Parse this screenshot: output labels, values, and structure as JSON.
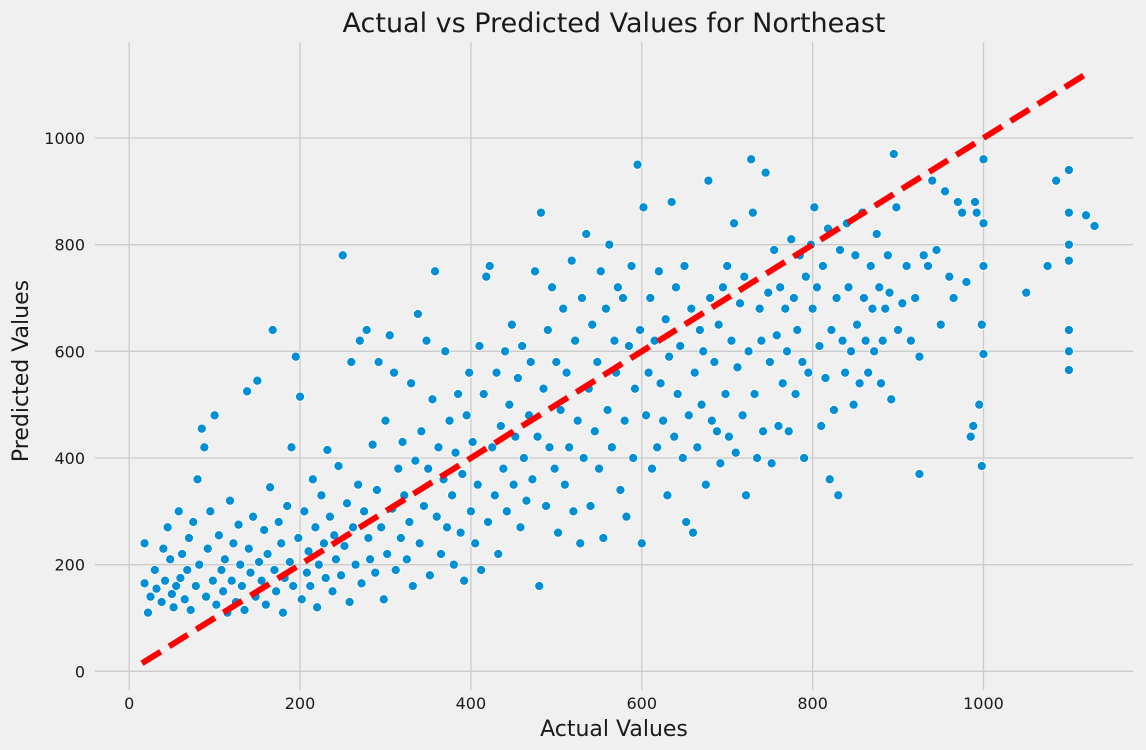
{
  "chart_data": {
    "type": "scatter",
    "title": "Actual vs Predicted Values for Northeast",
    "xlabel": "Actual Values",
    "ylabel": "Predicted Values",
    "xlim": [
      -40,
      1175
    ],
    "ylim": [
      -35,
      1180
    ],
    "xticks": [
      0,
      200,
      400,
      600,
      800,
      1000
    ],
    "yticks": [
      0,
      200,
      400,
      600,
      800,
      1000
    ],
    "grid": true,
    "point_color": "#008fd5",
    "reference_line": {
      "style": "dashed",
      "color": "#ff0000",
      "from": [
        15,
        15
      ],
      "to": [
        1125,
        1125
      ]
    },
    "points": [
      [
        18,
        240
      ],
      [
        18,
        165
      ],
      [
        22,
        110
      ],
      [
        25,
        140
      ],
      [
        30,
        190
      ],
      [
        32,
        155
      ],
      [
        38,
        130
      ],
      [
        40,
        230
      ],
      [
        42,
        170
      ],
      [
        45,
        270
      ],
      [
        48,
        210
      ],
      [
        50,
        145
      ],
      [
        52,
        120
      ],
      [
        55,
        160
      ],
      [
        58,
        300
      ],
      [
        60,
        175
      ],
      [
        62,
        220
      ],
      [
        65,
        135
      ],
      [
        68,
        190
      ],
      [
        70,
        250
      ],
      [
        72,
        115
      ],
      [
        75,
        280
      ],
      [
        78,
        160
      ],
      [
        80,
        360
      ],
      [
        82,
        200
      ],
      [
        85,
        455
      ],
      [
        88,
        420
      ],
      [
        90,
        140
      ],
      [
        92,
        230
      ],
      [
        95,
        300
      ],
      [
        98,
        170
      ],
      [
        100,
        480
      ],
      [
        102,
        125
      ],
      [
        105,
        255
      ],
      [
        108,
        190
      ],
      [
        110,
        150
      ],
      [
        112,
        210
      ],
      [
        115,
        110
      ],
      [
        118,
        320
      ],
      [
        120,
        170
      ],
      [
        122,
        240
      ],
      [
        125,
        130
      ],
      [
        128,
        275
      ],
      [
        130,
        200
      ],
      [
        132,
        160
      ],
      [
        135,
        115
      ],
      [
        138,
        525
      ],
      [
        140,
        230
      ],
      [
        142,
        185
      ],
      [
        145,
        290
      ],
      [
        148,
        140
      ],
      [
        150,
        545
      ],
      [
        152,
        205
      ],
      [
        155,
        170
      ],
      [
        158,
        265
      ],
      [
        160,
        125
      ],
      [
        162,
        220
      ],
      [
        165,
        345
      ],
      [
        168,
        640
      ],
      [
        170,
        190
      ],
      [
        172,
        150
      ],
      [
        175,
        280
      ],
      [
        178,
        240
      ],
      [
        180,
        110
      ],
      [
        182,
        175
      ],
      [
        185,
        310
      ],
      [
        188,
        205
      ],
      [
        190,
        420
      ],
      [
        192,
        160
      ],
      [
        195,
        590
      ],
      [
        198,
        250
      ],
      [
        200,
        515
      ],
      [
        202,
        135
      ],
      [
        205,
        300
      ],
      [
        208,
        185
      ],
      [
        210,
        225
      ],
      [
        212,
        160
      ],
      [
        215,
        360
      ],
      [
        218,
        270
      ],
      [
        220,
        120
      ],
      [
        222,
        200
      ],
      [
        225,
        330
      ],
      [
        228,
        240
      ],
      [
        230,
        175
      ],
      [
        232,
        415
      ],
      [
        235,
        290
      ],
      [
        238,
        150
      ],
      [
        240,
        255
      ],
      [
        242,
        210
      ],
      [
        245,
        385
      ],
      [
        248,
        180
      ],
      [
        250,
        780
      ],
      [
        252,
        235
      ],
      [
        255,
        315
      ],
      [
        258,
        130
      ],
      [
        260,
        580
      ],
      [
        262,
        270
      ],
      [
        265,
        200
      ],
      [
        268,
        350
      ],
      [
        270,
        620
      ],
      [
        272,
        165
      ],
      [
        275,
        300
      ],
      [
        278,
        640
      ],
      [
        280,
        250
      ],
      [
        282,
        210
      ],
      [
        285,
        425
      ],
      [
        288,
        185
      ],
      [
        290,
        340
      ],
      [
        292,
        580
      ],
      [
        295,
        270
      ],
      [
        298,
        135
      ],
      [
        300,
        470
      ],
      [
        302,
        220
      ],
      [
        305,
        630
      ],
      [
        308,
        305
      ],
      [
        310,
        560
      ],
      [
        312,
        190
      ],
      [
        315,
        380
      ],
      [
        318,
        250
      ],
      [
        320,
        430
      ],
      [
        322,
        330
      ],
      [
        325,
        210
      ],
      [
        328,
        280
      ],
      [
        330,
        540
      ],
      [
        332,
        160
      ],
      [
        335,
        395
      ],
      [
        338,
        670
      ],
      [
        340,
        240
      ],
      [
        342,
        450
      ],
      [
        345,
        310
      ],
      [
        348,
        620
      ],
      [
        350,
        380
      ],
      [
        352,
        180
      ],
      [
        355,
        510
      ],
      [
        358,
        750
      ],
      [
        360,
        290
      ],
      [
        362,
        420
      ],
      [
        365,
        220
      ],
      [
        368,
        360
      ],
      [
        370,
        600
      ],
      [
        372,
        270
      ],
      [
        375,
        470
      ],
      [
        378,
        330
      ],
      [
        380,
        200
      ],
      [
        382,
        410
      ],
      [
        385,
        520
      ],
      [
        388,
        260
      ],
      [
        390,
        370
      ],
      [
        392,
        170
      ],
      [
        395,
        480
      ],
      [
        398,
        560
      ],
      [
        400,
        300
      ],
      [
        402,
        430
      ],
      [
        405,
        240
      ],
      [
        408,
        350
      ],
      [
        410,
        610
      ],
      [
        412,
        190
      ],
      [
        415,
        520
      ],
      [
        418,
        740
      ],
      [
        420,
        280
      ],
      [
        422,
        760
      ],
      [
        425,
        420
      ],
      [
        428,
        330
      ],
      [
        430,
        560
      ],
      [
        432,
        220
      ],
      [
        435,
        460
      ],
      [
        438,
        380
      ],
      [
        440,
        600
      ],
      [
        442,
        300
      ],
      [
        445,
        500
      ],
      [
        448,
        650
      ],
      [
        450,
        350
      ],
      [
        452,
        440
      ],
      [
        455,
        550
      ],
      [
        458,
        270
      ],
      [
        460,
        610
      ],
      [
        462,
        400
      ],
      [
        465,
        320
      ],
      [
        468,
        480
      ],
      [
        470,
        580
      ],
      [
        472,
        360
      ],
      [
        475,
        750
      ],
      [
        478,
        440
      ],
      [
        480,
        160
      ],
      [
        482,
        860
      ],
      [
        485,
        530
      ],
      [
        488,
        310
      ],
      [
        490,
        640
      ],
      [
        492,
        420
      ],
      [
        495,
        720
      ],
      [
        498,
        380
      ],
      [
        500,
        580
      ],
      [
        502,
        260
      ],
      [
        505,
        490
      ],
      [
        508,
        680
      ],
      [
        510,
        350
      ],
      [
        512,
        560
      ],
      [
        515,
        420
      ],
      [
        518,
        770
      ],
      [
        520,
        300
      ],
      [
        522,
        620
      ],
      [
        525,
        470
      ],
      [
        528,
        240
      ],
      [
        530,
        700
      ],
      [
        532,
        400
      ],
      [
        535,
        820
      ],
      [
        538,
        530
      ],
      [
        540,
        310
      ],
      [
        542,
        650
      ],
      [
        545,
        450
      ],
      [
        548,
        580
      ],
      [
        550,
        380
      ],
      [
        552,
        750
      ],
      [
        555,
        250
      ],
      [
        558,
        680
      ],
      [
        560,
        490
      ],
      [
        562,
        800
      ],
      [
        565,
        420
      ],
      [
        568,
        620
      ],
      [
        570,
        560
      ],
      [
        572,
        720
      ],
      [
        575,
        340
      ],
      [
        578,
        700
      ],
      [
        580,
        470
      ],
      [
        582,
        290
      ],
      [
        585,
        610
      ],
      [
        588,
        760
      ],
      [
        590,
        400
      ],
      [
        592,
        530
      ],
      [
        595,
        950
      ],
      [
        598,
        640
      ],
      [
        600,
        240
      ],
      [
        602,
        870
      ],
      [
        605,
        480
      ],
      [
        608,
        560
      ],
      [
        610,
        700
      ],
      [
        612,
        380
      ],
      [
        615,
        620
      ],
      [
        618,
        420
      ],
      [
        620,
        750
      ],
      [
        622,
        540
      ],
      [
        625,
        470
      ],
      [
        628,
        660
      ],
      [
        630,
        330
      ],
      [
        632,
        590
      ],
      [
        635,
        880
      ],
      [
        638,
        440
      ],
      [
        640,
        720
      ],
      [
        642,
        520
      ],
      [
        645,
        610
      ],
      [
        648,
        400
      ],
      [
        650,
        760
      ],
      [
        652,
        280
      ],
      [
        655,
        480
      ],
      [
        658,
        680
      ],
      [
        660,
        260
      ],
      [
        662,
        560
      ],
      [
        665,
        420
      ],
      [
        668,
        640
      ],
      [
        670,
        500
      ],
      [
        672,
        600
      ],
      [
        675,
        350
      ],
      [
        678,
        920
      ],
      [
        680,
        700
      ],
      [
        682,
        470
      ],
      [
        685,
        580
      ],
      [
        688,
        450
      ],
      [
        690,
        650
      ],
      [
        692,
        390
      ],
      [
        695,
        720
      ],
      [
        698,
        520
      ],
      [
        700,
        760
      ],
      [
        702,
        440
      ],
      [
        705,
        620
      ],
      [
        708,
        840
      ],
      [
        710,
        410
      ],
      [
        712,
        570
      ],
      [
        715,
        690
      ],
      [
        718,
        480
      ],
      [
        720,
        740
      ],
      [
        722,
        330
      ],
      [
        725,
        600
      ],
      [
        728,
        960
      ],
      [
        730,
        860
      ],
      [
        732,
        520
      ],
      [
        735,
        400
      ],
      [
        738,
        680
      ],
      [
        740,
        620
      ],
      [
        742,
        450
      ],
      [
        745,
        935
      ],
      [
        748,
        710
      ],
      [
        750,
        580
      ],
      [
        752,
        390
      ],
      [
        755,
        790
      ],
      [
        758,
        630
      ],
      [
        760,
        460
      ],
      [
        762,
        720
      ],
      [
        765,
        540
      ],
      [
        768,
        680
      ],
      [
        770,
        600
      ],
      [
        772,
        450
      ],
      [
        775,
        810
      ],
      [
        778,
        700
      ],
      [
        780,
        520
      ],
      [
        782,
        640
      ],
      [
        785,
        780
      ],
      [
        788,
        580
      ],
      [
        790,
        400
      ],
      [
        792,
        740
      ],
      [
        795,
        560
      ],
      [
        798,
        800
      ],
      [
        800,
        680
      ],
      [
        802,
        870
      ],
      [
        805,
        720
      ],
      [
        808,
        610
      ],
      [
        810,
        460
      ],
      [
        812,
        760
      ],
      [
        815,
        550
      ],
      [
        818,
        830
      ],
      [
        820,
        360
      ],
      [
        822,
        640
      ],
      [
        825,
        490
      ],
      [
        828,
        700
      ],
      [
        830,
        330
      ],
      [
        832,
        790
      ],
      [
        835,
        620
      ],
      [
        838,
        560
      ],
      [
        840,
        840
      ],
      [
        842,
        720
      ],
      [
        845,
        600
      ],
      [
        848,
        500
      ],
      [
        850,
        780
      ],
      [
        852,
        650
      ],
      [
        855,
        540
      ],
      [
        858,
        860
      ],
      [
        860,
        700
      ],
      [
        862,
        620
      ],
      [
        865,
        560
      ],
      [
        868,
        760
      ],
      [
        870,
        680
      ],
      [
        872,
        600
      ],
      [
        875,
        820
      ],
      [
        878,
        720
      ],
      [
        880,
        540
      ],
      [
        882,
        620
      ],
      [
        885,
        680
      ],
      [
        888,
        780
      ],
      [
        890,
        710
      ],
      [
        892,
        510
      ],
      [
        895,
        970
      ],
      [
        898,
        870
      ],
      [
        900,
        640
      ],
      [
        905,
        690
      ],
      [
        910,
        760
      ],
      [
        915,
        620
      ],
      [
        920,
        700
      ],
      [
        925,
        590
      ],
      [
        925,
        370
      ],
      [
        930,
        780
      ],
      [
        935,
        760
      ],
      [
        940,
        920
      ],
      [
        945,
        790
      ],
      [
        950,
        650
      ],
      [
        955,
        900
      ],
      [
        960,
        740
      ],
      [
        965,
        700
      ],
      [
        970,
        880
      ],
      [
        975,
        860
      ],
      [
        980,
        730
      ],
      [
        985,
        440
      ],
      [
        988,
        460
      ],
      [
        990,
        880
      ],
      [
        992,
        860
      ],
      [
        995,
        500
      ],
      [
        998,
        650
      ],
      [
        998,
        385
      ],
      [
        1000,
        960
      ],
      [
        1000,
        760
      ],
      [
        1000,
        595
      ],
      [
        1000,
        840
      ],
      [
        1050,
        710
      ],
      [
        1075,
        760
      ],
      [
        1085,
        920
      ],
      [
        1100,
        940
      ],
      [
        1100,
        860
      ],
      [
        1100,
        800
      ],
      [
        1100,
        770
      ],
      [
        1100,
        640
      ],
      [
        1100,
        600
      ],
      [
        1100,
        565
      ],
      [
        1120,
        855
      ],
      [
        1130,
        835
      ]
    ]
  }
}
